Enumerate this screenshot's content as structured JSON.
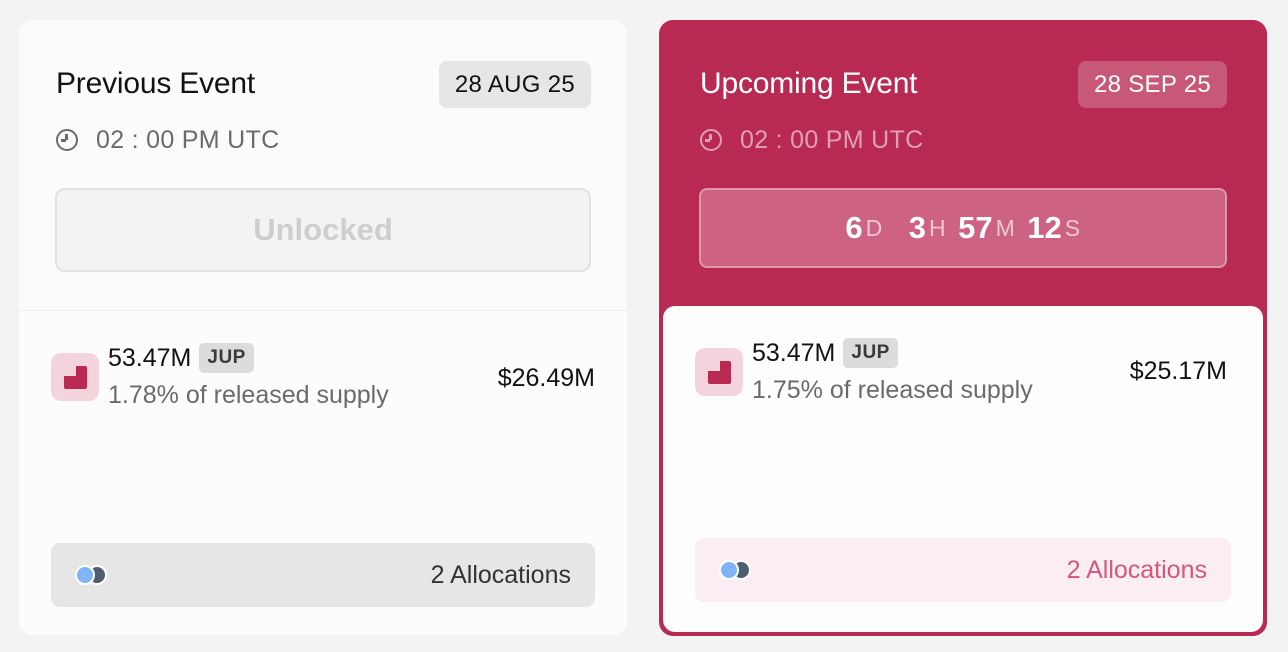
{
  "previous": {
    "title": "Previous Event",
    "date": "28 AUG 25",
    "time": "02 : 00 PM UTC",
    "status_label": "Unlocked",
    "amount": "53.47M",
    "symbol": "JUP",
    "supply": "1.78% of released supply",
    "usd_value": "$26.49M",
    "allocations": "2 Allocations"
  },
  "upcoming": {
    "title": "Upcoming Event",
    "date": "28 SEP 25",
    "time": "02 : 00 PM UTC",
    "countdown": {
      "days": "6",
      "days_unit": "D",
      "hours": "3",
      "hours_unit": "H",
      "minutes": "57",
      "minutes_unit": "M",
      "seconds": "12",
      "seconds_unit": "S"
    },
    "amount": "53.47M",
    "symbol": "JUP",
    "supply": "1.75% of released supply",
    "usd_value": "$25.17M",
    "allocations": "2 Allocations"
  },
  "icons": {
    "clock": "clock-icon",
    "token": "jup-token-icon",
    "allocation_dots": "allocation-dots-icon"
  },
  "colors": {
    "accent": "#b92a52",
    "accent_light": "#f3d3dc",
    "alloc_text": "#d4577b"
  }
}
